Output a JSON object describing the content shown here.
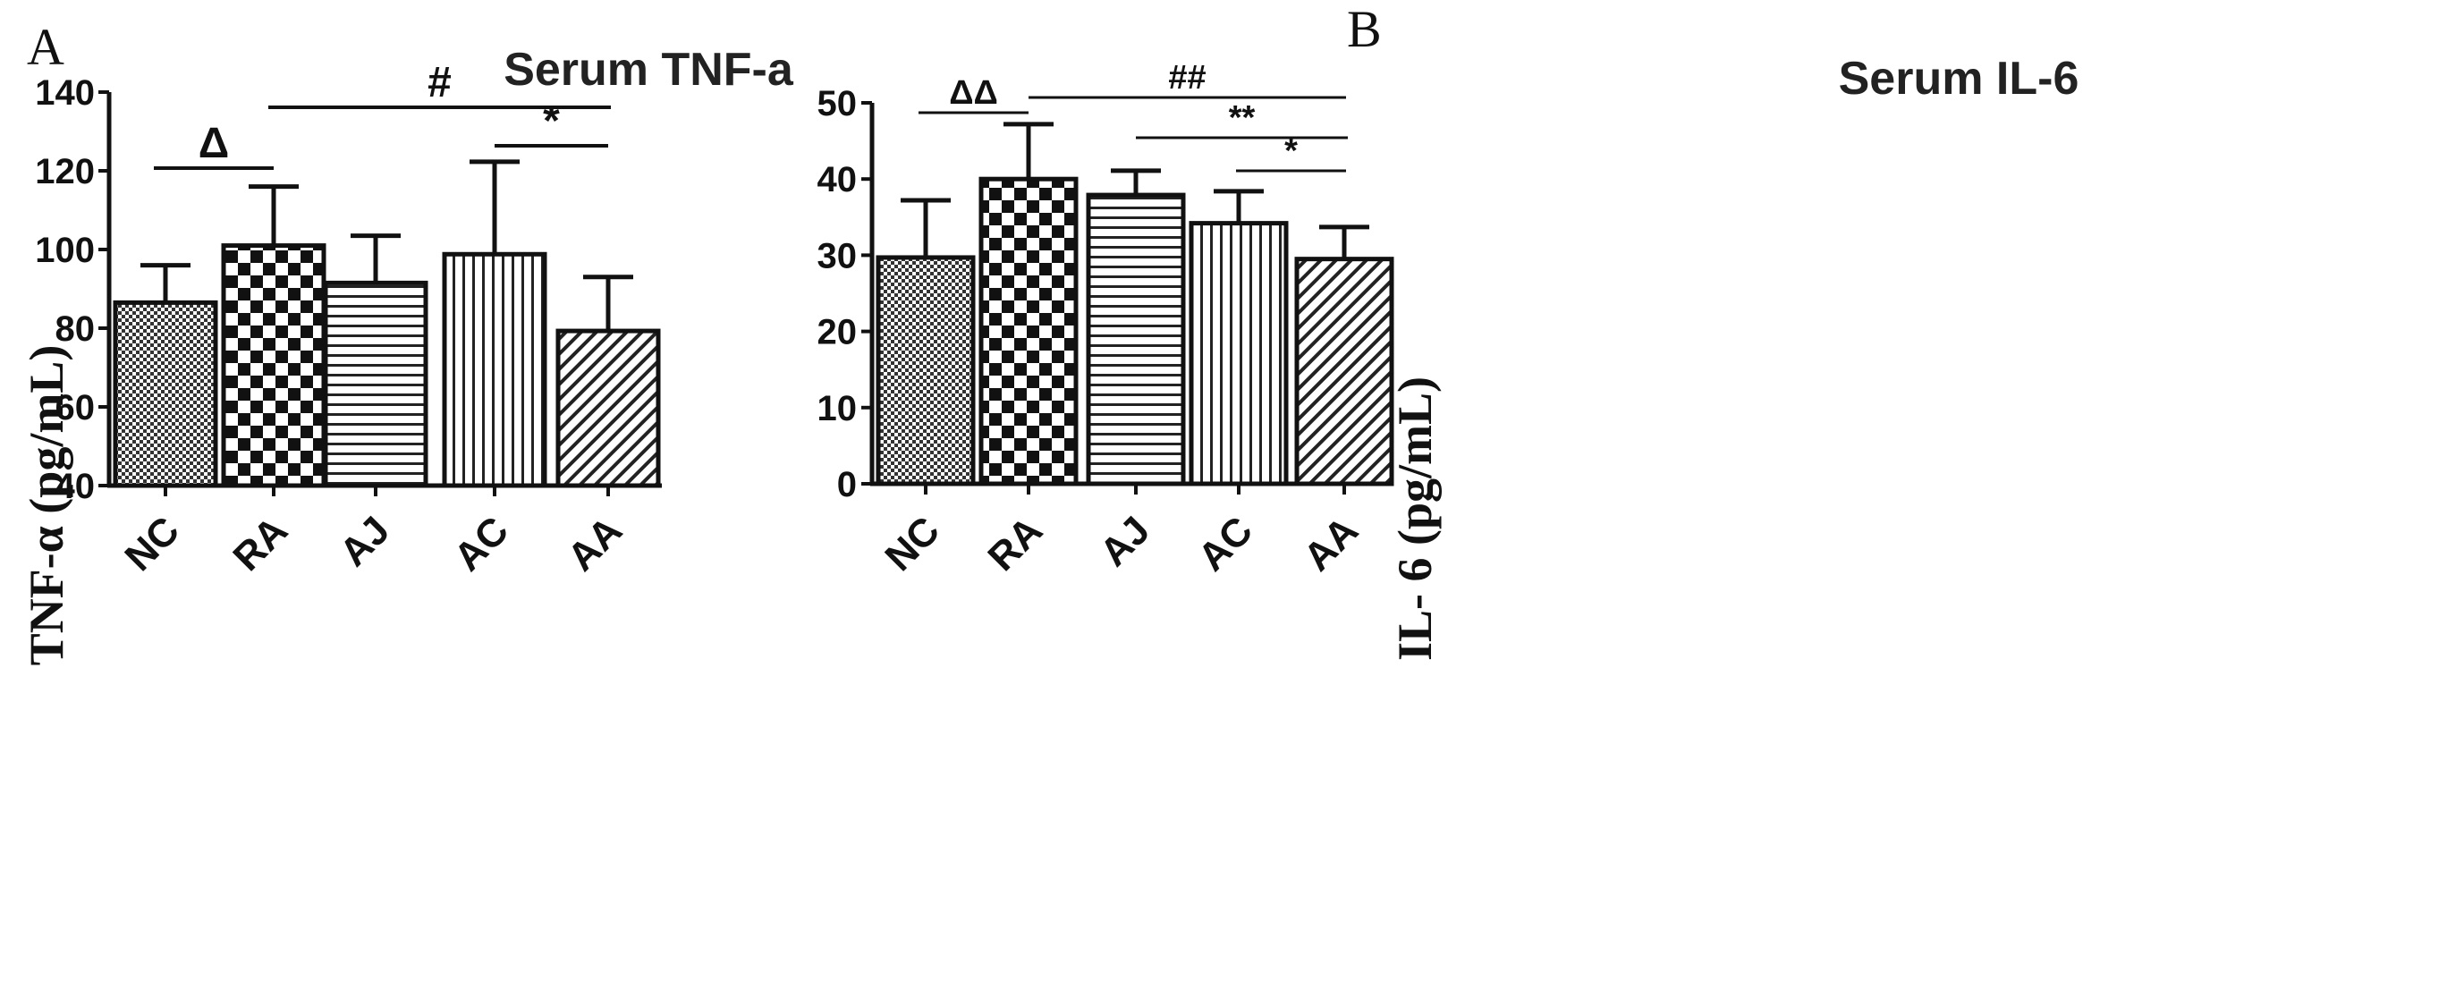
{
  "chart_data": [
    {
      "panel": "A",
      "type": "bar",
      "title": "Serum TNF-a",
      "xlabel": "",
      "ylabel": "TNF-α (pg/mL)",
      "ylim": [
        40,
        140
      ],
      "yticks": [
        40,
        60,
        80,
        100,
        120,
        140
      ],
      "categories": [
        "NC",
        "RA",
        "AJ",
        "AC",
        "AA"
      ],
      "values": [
        86.5,
        101,
        91.5,
        98.8,
        79.3
      ],
      "errors": [
        9.5,
        15,
        12,
        23.5,
        13.7
      ],
      "patterns": [
        "fine-checker",
        "coarse-checker",
        "horizontal-lines",
        "vertical-lines",
        "diagonal-lines"
      ],
      "significance": [
        {
          "from": "NC",
          "to": "RA",
          "label": "Δ"
        },
        {
          "from": "RA",
          "to": "AA",
          "label": "#"
        },
        {
          "from": "AC",
          "to": "AA",
          "label": "*"
        }
      ],
      "grid": false
    },
    {
      "panel": "B",
      "type": "bar",
      "title": "Serum IL-6",
      "xlabel": "",
      "ylabel": "IL- 6 (pg/mL)",
      "ylim": [
        0,
        50
      ],
      "yticks": [
        0,
        10,
        20,
        30,
        40,
        50
      ],
      "categories": [
        "NC",
        "RA",
        "AJ",
        "AC",
        "AA"
      ],
      "values": [
        29.7,
        40,
        37.9,
        34.2,
        29.5
      ],
      "errors": [
        7.5,
        7.2,
        3.2,
        4.2,
        4.2
      ],
      "patterns": [
        "fine-checker",
        "coarse-checker",
        "horizontal-lines",
        "vertical-lines",
        "diagonal-lines"
      ],
      "significance": [
        {
          "from": "NC",
          "to": "RA",
          "label": "ΔΔ"
        },
        {
          "from": "RA",
          "to": "AA",
          "label": "##"
        },
        {
          "from": "AJ",
          "to": "AA",
          "label": "**"
        },
        {
          "from": "AC",
          "to": "AA",
          "label": "*"
        }
      ],
      "grid": false
    }
  ]
}
